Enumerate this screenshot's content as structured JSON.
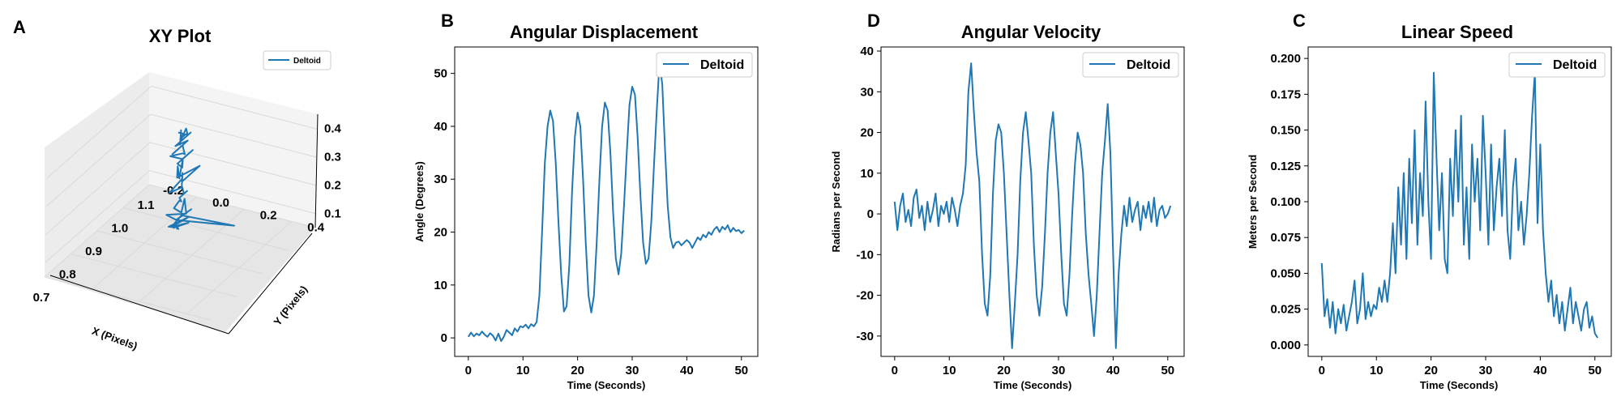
{
  "colors": {
    "series": "#1f77b4",
    "axis": "#000000",
    "legend_border": "#cccccc",
    "pane": "#f2f2f2",
    "grid": "#d9d9d9"
  },
  "chart_data": [
    {
      "id": "xy",
      "panel_letter": "A",
      "type": "line",
      "title": "XY Plot",
      "xlabel": "X (Pixels)",
      "ylabel": "Y (Pixels)",
      "zlabel": "",
      "x_ticks": [
        "0.7",
        "0.8",
        "0.9",
        "1.0",
        "1.1"
      ],
      "y_ticks": [
        "-0.2",
        "0.0",
        "0.2",
        "0.4"
      ],
      "z_ticks": [
        "0.1",
        "0.2",
        "0.3",
        "0.4"
      ],
      "xlim": [
        0.7,
        1.1
      ],
      "ylim": [
        -0.2,
        0.5
      ],
      "zlim": [
        0.05,
        0.45
      ],
      "legend": {
        "label": "Deltoid",
        "position": "top-right"
      },
      "series": [
        {
          "name": "Deltoid",
          "x": [
            0.93,
            0.92,
            0.94,
            0.91,
            0.95,
            0.93,
            0.9,
            0.96,
            0.92,
            0.94,
            0.97,
            0.91,
            0.93,
            0.95,
            0.92,
            0.9,
            0.94,
            0.96,
            0.93,
            0.91,
            0.95,
            0.92,
            0.94,
            0.93,
            0.96,
            0.92,
            0.95,
            0.93,
            0.91,
            0.94,
            0.92,
            0.95,
            0.93,
            0.97,
            0.92,
            0.94,
            0.91,
            0.95,
            0.93,
            0.92,
            0.94,
            0.96,
            0.93,
            0.91,
            0.94,
            0.92,
            0.95,
            0.93,
            0.9,
            0.94,
            0.92,
            0.96,
            0.93,
            0.95,
            0.91,
            0.94,
            0.92,
            0.95,
            0.93,
            0.96,
            0.92,
            0.94,
            0.93
          ],
          "y": [
            0.1,
            0.12,
            0.09,
            0.11,
            0.13,
            0.08,
            0.1,
            0.12,
            0.09,
            0.11,
            0.3,
            0.12,
            0.1,
            0.14,
            0.11,
            0.09,
            0.13,
            0.1,
            0.12,
            0.11,
            0.09,
            0.13,
            0.1,
            0.12,
            0.11,
            0.14,
            0.1,
            0.12,
            0.09,
            0.11,
            0.13,
            0.1,
            0.12,
            0.15,
            0.11,
            0.09,
            0.13,
            0.1,
            0.12,
            0.11,
            0.1,
            0.13,
            0.12,
            0.09,
            0.11,
            0.14,
            0.1,
            0.12,
            0.11,
            0.13,
            0.1,
            0.12,
            0.11,
            0.09,
            0.13,
            0.1,
            0.12,
            0.11,
            0.14,
            0.1,
            0.12,
            0.11,
            0.1
          ],
          "z": [
            0.1,
            0.11,
            0.1,
            0.12,
            0.11,
            0.1,
            0.13,
            0.12,
            0.11,
            0.14,
            0.12,
            0.15,
            0.13,
            0.16,
            0.14,
            0.17,
            0.15,
            0.18,
            0.16,
            0.19,
            0.18,
            0.21,
            0.2,
            0.22,
            0.21,
            0.24,
            0.23,
            0.25,
            0.24,
            0.27,
            0.26,
            0.28,
            0.27,
            0.3,
            0.29,
            0.31,
            0.3,
            0.33,
            0.32,
            0.34,
            0.33,
            0.36,
            0.35,
            0.37,
            0.36,
            0.38,
            0.37,
            0.4,
            0.39,
            0.41,
            0.4,
            0.42,
            0.41,
            0.43,
            0.42,
            0.41,
            0.43,
            0.42,
            0.44,
            0.43,
            0.42,
            0.43,
            0.44
          ]
        }
      ]
    },
    {
      "id": "angdisp",
      "panel_letter": "B",
      "type": "line",
      "title": "Angular Displacement",
      "xlabel": "Time (Seconds)",
      "ylabel": "Angle (Degrees)",
      "xlim": [
        -2.5,
        53
      ],
      "ylim": [
        -3.5,
        55
      ],
      "x_ticks": [
        0,
        10,
        20,
        30,
        40,
        50
      ],
      "y_ticks": [
        0,
        10,
        20,
        30,
        40,
        50
      ],
      "legend": {
        "label": "Deltoid",
        "position": "top-right"
      },
      "series": [
        {
          "name": "Deltoid",
          "x": [
            0,
            0.5,
            1,
            1.5,
            2,
            2.5,
            3,
            3.5,
            4,
            4.5,
            5,
            5.5,
            6,
            6.5,
            7,
            7.5,
            8,
            8.5,
            9,
            9.5,
            10,
            10.5,
            11,
            11.5,
            12,
            12.5,
            13,
            13.5,
            14,
            14.5,
            15,
            15.5,
            16,
            16.5,
            17,
            17.5,
            18,
            18.5,
            19,
            19.5,
            20,
            20.5,
            21,
            21.5,
            22,
            22.5,
            23,
            23.5,
            24,
            24.5,
            25,
            25.5,
            26,
            26.5,
            27,
            27.5,
            28,
            28.5,
            29,
            29.5,
            30,
            30.5,
            31,
            31.5,
            32,
            32.5,
            33,
            33.5,
            34,
            34.5,
            35,
            35.5,
            36,
            36.5,
            37,
            37.5,
            38,
            38.5,
            39,
            39.5,
            40,
            40.5,
            41,
            41.5,
            42,
            42.5,
            43,
            43.5,
            44,
            44.5,
            45,
            45.5,
            46,
            46.5,
            47,
            47.5,
            48,
            48.5,
            49,
            49.5,
            50,
            50.5
          ],
          "y": [
            0.2,
            1.0,
            0.3,
            0.8,
            0.5,
            1.2,
            0.6,
            0.2,
            0.9,
            0.4,
            -0.5,
            0.8,
            -0.6,
            0.2,
            1.5,
            1.0,
            0.5,
            1.8,
            1.2,
            2.2,
            2.0,
            2.5,
            1.8,
            2.6,
            2.2,
            3.0,
            8.0,
            20.0,
            33.0,
            40.0,
            43.0,
            41.0,
            33.0,
            22.0,
            12.0,
            5.0,
            6.0,
            14.0,
            28.0,
            38.0,
            42.6,
            40.0,
            30.0,
            18.0,
            8.0,
            4.8,
            8.0,
            18.0,
            30.0,
            40.0,
            44.5,
            43.0,
            35.0,
            24.0,
            15.0,
            12.0,
            16.0,
            25.0,
            35.0,
            44.0,
            47.5,
            46.0,
            38.0,
            27.0,
            18.0,
            14.0,
            15.0,
            22.0,
            33.0,
            43.0,
            52.0,
            48.0,
            36.0,
            25.0,
            19.0,
            17.0,
            18.0,
            18.2,
            17.5,
            18.0,
            18.5,
            18.0,
            17.0,
            18.0,
            19.0,
            18.5,
            19.5,
            19.0,
            20.0,
            19.5,
            20.5,
            21.0,
            20.0,
            21.0,
            20.5,
            21.3,
            20.0,
            20.8,
            20.2,
            20.4,
            19.8,
            20.3
          ]
        }
      ]
    },
    {
      "id": "angvel",
      "panel_letter": "D",
      "type": "line",
      "title": "Angular Velocity",
      "xlabel": "Time (Seconds)",
      "ylabel": "Radians per Second",
      "xlim": [
        -2.5,
        53
      ],
      "ylim": [
        -35,
        41
      ],
      "x_ticks": [
        0,
        10,
        20,
        30,
        40,
        50
      ],
      "y_ticks": [
        -30,
        -20,
        -10,
        0,
        10,
        20,
        30,
        40
      ],
      "legend": {
        "label": "Deltoid",
        "position": "top-right"
      },
      "series": [
        {
          "name": "Deltoid",
          "x": [
            0,
            0.5,
            1,
            1.5,
            2,
            2.5,
            3,
            3.5,
            4,
            4.5,
            5,
            5.5,
            6,
            6.5,
            7,
            7.5,
            8,
            8.5,
            9,
            9.5,
            10,
            10.5,
            11,
            11.5,
            12,
            12.5,
            13,
            13.5,
            14,
            14.5,
            15,
            15.5,
            16,
            16.5,
            17,
            17.5,
            18,
            18.5,
            19,
            19.5,
            20,
            20.5,
            21,
            21.5,
            22,
            22.5,
            23,
            23.5,
            24,
            24.5,
            25,
            25.5,
            26,
            26.5,
            27,
            27.5,
            28,
            28.5,
            29,
            29.5,
            30,
            30.5,
            31,
            31.5,
            32,
            32.5,
            33,
            33.5,
            34,
            34.5,
            35,
            35.5,
            36,
            36.5,
            37,
            37.5,
            38,
            38.5,
            39,
            39.5,
            40,
            40.5,
            41,
            41.5,
            42,
            42.5,
            43,
            43.5,
            44,
            44.5,
            45,
            45.5,
            46,
            46.5,
            47,
            47.5,
            48,
            48.5,
            49,
            49.5,
            50,
            50.5
          ],
          "y": [
            3,
            -4,
            2,
            5,
            -2,
            1,
            -3,
            4,
            6,
            -1,
            2,
            -4,
            3,
            -2,
            1,
            5,
            -3,
            2,
            0,
            3,
            -2,
            4,
            1,
            -3,
            2,
            5,
            12,
            30,
            37,
            25,
            15,
            8,
            -10,
            -22,
            -25,
            -15,
            5,
            18,
            22,
            20,
            10,
            -5,
            -20,
            -33,
            -22,
            -10,
            8,
            20,
            25,
            18,
            10,
            -8,
            -20,
            -25,
            -18,
            -5,
            10,
            20,
            25,
            15,
            5,
            -10,
            -22,
            -25,
            -15,
            0,
            12,
            20,
            17,
            10,
            -5,
            -15,
            -22,
            -30,
            -20,
            -5,
            10,
            18,
            27,
            15,
            -10,
            -33,
            -15,
            -5,
            2,
            -3,
            4,
            -2,
            1,
            3,
            -4,
            2,
            -1,
            3,
            -2,
            4,
            -3,
            1,
            2,
            -1,
            0,
            2
          ]
        }
      ]
    },
    {
      "id": "linspeed",
      "panel_letter": "C",
      "type": "line",
      "title": "Linear Speed",
      "xlabel": "Time (Seconds)",
      "ylabel": "Meters per Second",
      "xlim": [
        -2.5,
        53
      ],
      "ylim": [
        -0.008,
        0.208
      ],
      "x_ticks": [
        0,
        10,
        20,
        30,
        40,
        50
      ],
      "y_ticks": [
        "0.000",
        "0.025",
        "0.050",
        "0.075",
        "0.100",
        "0.125",
        "0.150",
        "0.175",
        "0.200"
      ],
      "legend": {
        "label": "Deltoid",
        "position": "top-right"
      },
      "series": [
        {
          "name": "Deltoid",
          "x": [
            0,
            0.5,
            1,
            1.5,
            2,
            2.5,
            3,
            3.5,
            4,
            4.5,
            5,
            5.5,
            6,
            6.5,
            7,
            7.5,
            8,
            8.5,
            9,
            9.5,
            10,
            10.5,
            11,
            11.5,
            12,
            12.5,
            13,
            13.5,
            14,
            14.5,
            15,
            15.5,
            16,
            16.5,
            17,
            17.5,
            18,
            18.5,
            19,
            19.5,
            20,
            20.5,
            21,
            21.5,
            22,
            22.5,
            23,
            23.5,
            24,
            24.5,
            25,
            25.5,
            26,
            26.5,
            27,
            27.5,
            28,
            28.5,
            29,
            29.5,
            30,
            30.5,
            31,
            31.5,
            32,
            32.5,
            33,
            33.5,
            34,
            34.5,
            35,
            35.5,
            36,
            36.5,
            37,
            37.5,
            38,
            38.5,
            39,
            39.5,
            40,
            40.5,
            41,
            41.5,
            42,
            42.5,
            43,
            43.5,
            44,
            44.5,
            45,
            45.5,
            46,
            46.5,
            47,
            47.5,
            48,
            48.5,
            49,
            49.5,
            50,
            50.5
          ],
          "y": [
            0.057,
            0.02,
            0.032,
            0.012,
            0.03,
            0.008,
            0.025,
            0.015,
            0.028,
            0.01,
            0.02,
            0.03,
            0.045,
            0.015,
            0.025,
            0.05,
            0.018,
            0.03,
            0.02,
            0.028,
            0.025,
            0.04,
            0.03,
            0.045,
            0.03,
            0.05,
            0.085,
            0.05,
            0.11,
            0.07,
            0.12,
            0.06,
            0.13,
            0.085,
            0.15,
            0.07,
            0.12,
            0.09,
            0.17,
            0.1,
            0.06,
            0.19,
            0.13,
            0.08,
            0.12,
            0.06,
            0.05,
            0.13,
            0.09,
            0.15,
            0.1,
            0.16,
            0.07,
            0.11,
            0.06,
            0.14,
            0.1,
            0.13,
            0.08,
            0.16,
            0.12,
            0.07,
            0.14,
            0.08,
            0.11,
            0.13,
            0.09,
            0.15,
            0.08,
            0.06,
            0.11,
            0.13,
            0.08,
            0.1,
            0.07,
            0.09,
            0.12,
            0.16,
            0.19,
            0.085,
            0.14,
            0.08,
            0.05,
            0.03,
            0.045,
            0.02,
            0.035,
            0.015,
            0.03,
            0.01,
            0.025,
            0.04,
            0.015,
            0.03,
            0.02,
            0.01,
            0.025,
            0.03,
            0.012,
            0.02,
            0.008,
            0.005
          ]
        }
      ]
    }
  ]
}
